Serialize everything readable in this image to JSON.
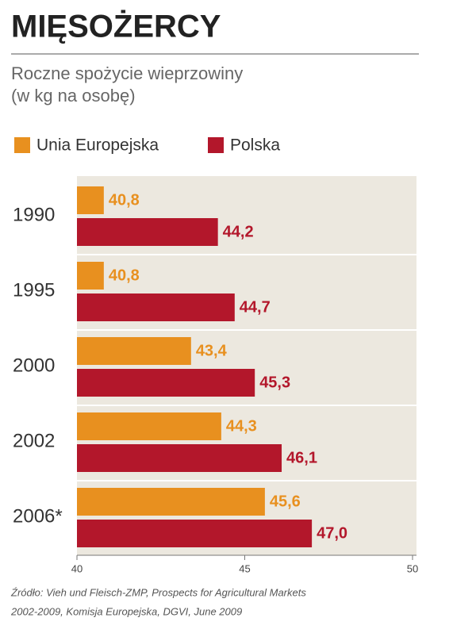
{
  "chart_data": {
    "type": "hbar",
    "title": "MIĘSOŻERCY",
    "subtitle": [
      "Roczne spożycie wieprzowiny",
      "(w kg na osobę)"
    ],
    "categories": [
      "1990",
      "1995",
      "2000",
      "2002",
      "2006*"
    ],
    "series": [
      {
        "name": "Unia Europejska",
        "color": "#e8901f",
        "values": [
          40.8,
          40.8,
          43.4,
          44.3,
          45.6
        ],
        "value_labels": [
          "40,8",
          "40,8",
          "43,4",
          "44,3",
          "45,6"
        ]
      },
      {
        "name": "Polska",
        "color": "#b3172b",
        "values": [
          44.2,
          44.7,
          45.3,
          46.1,
          47.0
        ],
        "value_labels": [
          "44,2",
          "44,7",
          "45,3",
          "46,1",
          "47,0"
        ]
      }
    ],
    "xlim": [
      40,
      50
    ],
    "xticks": [
      40,
      45,
      50
    ],
    "source": [
      "Źródło: Vieh und Fleisch-ZMP, Prospects for Agricultural Markets",
      "2002-2009, Komisja Europejska, DGVI, June 2009"
    ]
  }
}
